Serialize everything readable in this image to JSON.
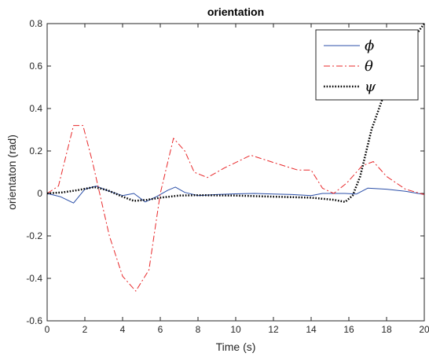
{
  "chart_data": {
    "type": "line",
    "title": "orientation",
    "xlabel": "Time (s)",
    "ylabel": "orientaton (rad)",
    "xlim": [
      0,
      20
    ],
    "ylim": [
      -0.6,
      0.8
    ],
    "x_ticks": [
      0,
      2,
      4,
      6,
      8,
      10,
      12,
      14,
      16,
      18,
      20
    ],
    "y_ticks": [
      -0.6,
      -0.4,
      -0.2,
      0,
      0.2,
      0.4,
      0.6,
      0.8
    ],
    "y_tick_labels": [
      "-0.6",
      "-0.4",
      "-0.2",
      "0",
      "0.2",
      "0.4",
      "0.6",
      "0.8"
    ],
    "grid": false,
    "legend_position": "top-right",
    "series": [
      {
        "name": "ϕ",
        "color": "#2b4fa8",
        "style": "solid",
        "points": [
          [
            0,
            0
          ],
          [
            0.7,
            -0.015
          ],
          [
            1.4,
            -0.045
          ],
          [
            2,
            0.02
          ],
          [
            2.6,
            0.035
          ],
          [
            3.3,
            0.01
          ],
          [
            4,
            -0.01
          ],
          [
            4.6,
            0.0
          ],
          [
            5.2,
            -0.04
          ],
          [
            5.8,
            -0.015
          ],
          [
            6.4,
            0.015
          ],
          [
            6.8,
            0.03
          ],
          [
            7.3,
            0.005
          ],
          [
            8,
            -0.01
          ],
          [
            9,
            -0.005
          ],
          [
            10,
            -0.002
          ],
          [
            11,
            0.0
          ],
          [
            12,
            -0.003
          ],
          [
            13,
            -0.005
          ],
          [
            14,
            -0.01
          ],
          [
            14.6,
            0.0
          ],
          [
            15.2,
            0.0
          ],
          [
            15.8,
            0.0
          ],
          [
            16.4,
            -0.003
          ],
          [
            17,
            0.025
          ],
          [
            18,
            0.02
          ],
          [
            19,
            0.01
          ],
          [
            20,
            -0.005
          ]
        ]
      },
      {
        "name": "θ",
        "color": "#e8282a",
        "style": "dash-dot",
        "points": [
          [
            0,
            0
          ],
          [
            0.6,
            0.035
          ],
          [
            1.4,
            0.32
          ],
          [
            1.9,
            0.32
          ],
          [
            2.4,
            0.15
          ],
          [
            3.3,
            -0.2
          ],
          [
            4,
            -0.39
          ],
          [
            4.7,
            -0.46
          ],
          [
            5.4,
            -0.36
          ],
          [
            6.0,
            0.0
          ],
          [
            6.7,
            0.26
          ],
          [
            7.3,
            0.2
          ],
          [
            7.8,
            0.1
          ],
          [
            8.5,
            0.075
          ],
          [
            9.4,
            0.12
          ],
          [
            10.8,
            0.18
          ],
          [
            12.2,
            0.14
          ],
          [
            13.3,
            0.11
          ],
          [
            14.0,
            0.11
          ],
          [
            14.6,
            0.025
          ],
          [
            15.2,
            0.0
          ],
          [
            15.9,
            0.05
          ],
          [
            16.7,
            0.13
          ],
          [
            17.3,
            0.15
          ],
          [
            18,
            0.08
          ],
          [
            19,
            0.02
          ],
          [
            20,
            -0.005
          ]
        ]
      },
      {
        "name": "ψ",
        "color": "#000000",
        "style": "dotted",
        "points": [
          [
            0,
            0
          ],
          [
            0.8,
            0.005
          ],
          [
            1.6,
            0.015
          ],
          [
            2.5,
            0.03
          ],
          [
            3.2,
            0.015
          ],
          [
            4.0,
            -0.015
          ],
          [
            4.6,
            -0.035
          ],
          [
            5.3,
            -0.03
          ],
          [
            6.0,
            -0.02
          ],
          [
            7.0,
            -0.01
          ],
          [
            8.0,
            -0.008
          ],
          [
            10.0,
            -0.01
          ],
          [
            12.0,
            -0.015
          ],
          [
            14.0,
            -0.02
          ],
          [
            15.2,
            -0.03
          ],
          [
            15.8,
            -0.04
          ],
          [
            16.2,
            -0.01
          ],
          [
            16.6,
            0.08
          ],
          [
            17.2,
            0.3
          ],
          [
            18.0,
            0.5
          ],
          [
            19.0,
            0.68
          ],
          [
            20,
            0.8
          ]
        ]
      }
    ]
  }
}
